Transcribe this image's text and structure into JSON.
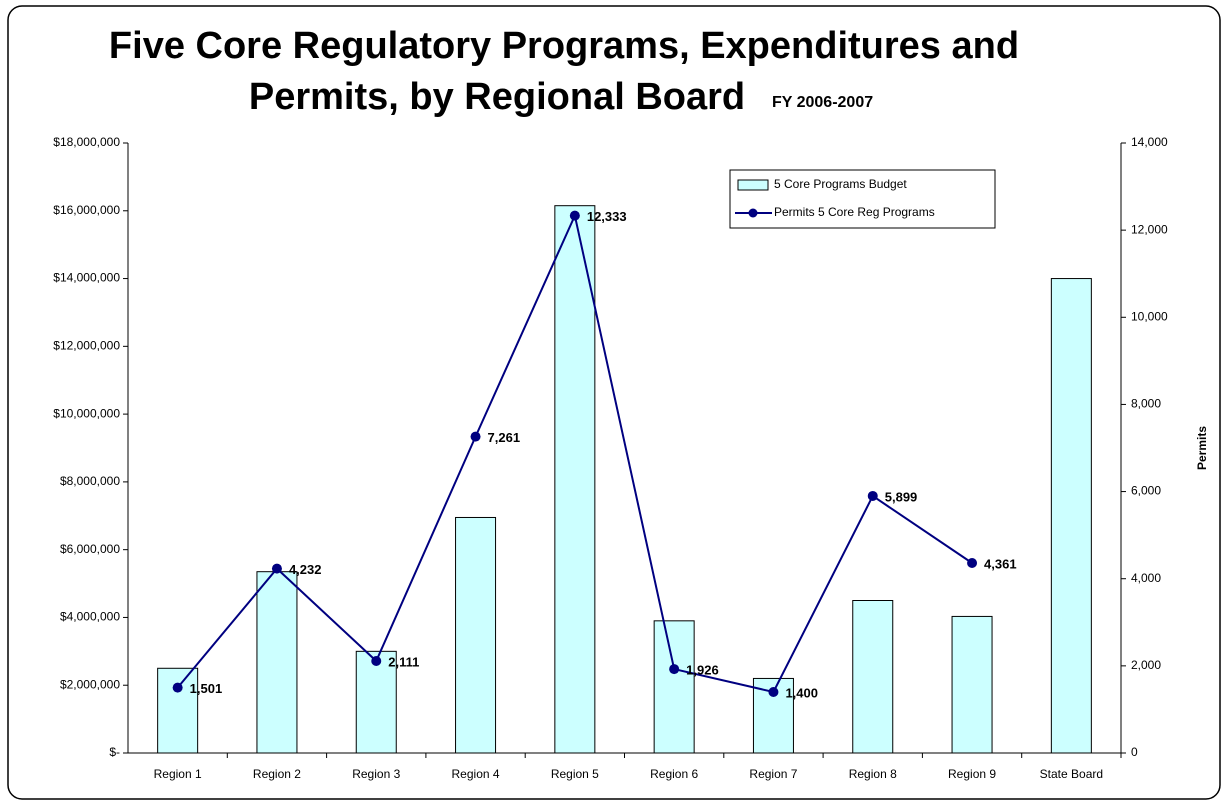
{
  "chart_data": {
    "type": "combo",
    "title": [
      "Five Core Regulatory Programs, Expenditures and",
      "Permits, by Regional Board"
    ],
    "subtitle": "FY 2006-2007",
    "y2_label": "Permits",
    "categories": [
      "Region 1",
      "Region 2",
      "Region 3",
      "Region 4",
      "Region 5",
      "Region 6",
      "Region 7",
      "Region 8",
      "Region 9",
      "State Board"
    ],
    "series": [
      {
        "name": "5 Core Programs Budget",
        "type": "bar",
        "color": "#ccffff",
        "values": [
          2500000,
          5350000,
          3000000,
          6950000,
          16150000,
          3900000,
          2200000,
          4500000,
          4030000,
          14000000
        ]
      },
      {
        "name": "Permits 5 Core Reg Programs",
        "type": "line",
        "axis": "y2",
        "color": "#000080",
        "values": [
          1501,
          4232,
          2111,
          7261,
          12333,
          1926,
          1400,
          5899,
          4361,
          null
        ],
        "value_labels": [
          "1,501",
          "4,232",
          "2,111",
          "7,261",
          "12,333",
          "1,926",
          "1,400",
          "5,899",
          "4,361",
          null
        ]
      }
    ],
    "ylim": [
      0,
      18000000
    ],
    "yticks": [
      {
        "value": 0,
        "label": "$-"
      },
      {
        "value": 2000000,
        "label": "$2,000,000"
      },
      {
        "value": 4000000,
        "label": "$4,000,000"
      },
      {
        "value": 6000000,
        "label": "$6,000,000"
      },
      {
        "value": 8000000,
        "label": "$8,000,000"
      },
      {
        "value": 10000000,
        "label": "$10,000,000"
      },
      {
        "value": 12000000,
        "label": "$12,000,000"
      },
      {
        "value": 14000000,
        "label": "$14,000,000"
      },
      {
        "value": 16000000,
        "label": "$16,000,000"
      },
      {
        "value": 18000000,
        "label": "$18,000,000"
      }
    ],
    "y2lim": [
      0,
      14000
    ],
    "y2ticks": [
      0,
      {
        "value": 2000,
        "label": "2,000"
      },
      {
        "value": 4000,
        "label": "4,000"
      },
      {
        "value": 6000,
        "label": "6,000"
      },
      {
        "value": 8000,
        "label": "8,000"
      },
      {
        "value": 10000,
        "label": "10,000"
      },
      {
        "value": 12000,
        "label": "12,000"
      },
      {
        "value": 14000,
        "label": "14,000"
      }
    ],
    "legend": "top-right"
  }
}
